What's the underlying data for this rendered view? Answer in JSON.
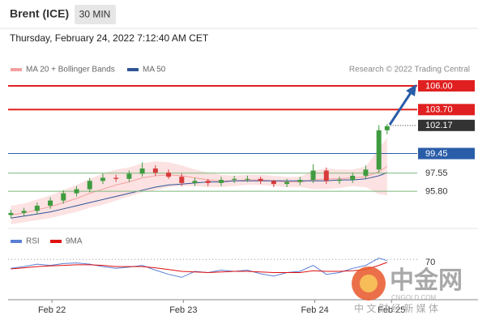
{
  "header": {
    "symbol": "Brent (ICE)",
    "interval": "30 MIN",
    "timestamp": "Thursday, February 24, 2022 7:12:40 AM CET"
  },
  "chart_data": {
    "type": "candlestick",
    "source": "Research © 2022 Trading Central",
    "up_color": "#3f9b3f",
    "down_color": "#d63a3a",
    "xlim": [
      0,
      74.7
    ],
    "ylim": [
      92.75,
      106.86
    ],
    "xticks": [
      {
        "value": 8,
        "label": "Feb 22"
      },
      {
        "value": 32,
        "label": "Feb 23"
      },
      {
        "value": 56,
        "label": "Feb 24"
      },
      {
        "value": 70,
        "label": "Feb 25"
      }
    ],
    "x": [
      0.5,
      2.9,
      5.3,
      7.7,
      10.1,
      12.5,
      14.9,
      17.3,
      19.7,
      22.1,
      24.5,
      26.9,
      29.3,
      31.7,
      34.1,
      36.5,
      38.9,
      41.3,
      43.7,
      46.1,
      48.5,
      50.9,
      53.3,
      55.7,
      58.1,
      60.5,
      62.9,
      65.3,
      67.7,
      69.2
    ],
    "open": [
      93.5,
      93.7,
      93.9,
      94.4,
      94.9,
      95.6,
      96.0,
      96.8,
      97.1,
      97.0,
      97.5,
      98.0,
      97.6,
      97.2,
      96.6,
      96.8,
      96.6,
      96.9,
      97.0,
      97.0,
      96.8,
      96.5,
      96.7,
      96.9,
      97.8,
      96.8,
      96.9,
      97.3,
      97.9,
      101.7
    ],
    "close": [
      93.7,
      93.9,
      94.4,
      94.9,
      95.6,
      96.0,
      96.8,
      97.1,
      97.0,
      97.5,
      98.0,
      97.6,
      97.2,
      96.6,
      96.8,
      96.6,
      96.9,
      97.0,
      97.0,
      96.8,
      96.5,
      96.7,
      96.9,
      97.8,
      96.8,
      96.9,
      97.3,
      97.9,
      101.7,
      102.1
    ],
    "high": [
      94.0,
      94.2,
      94.7,
      95.2,
      95.9,
      96.3,
      97.1,
      97.5,
      97.4,
      97.8,
      98.6,
      98.3,
      97.9,
      97.5,
      97.1,
      97.0,
      97.2,
      97.3,
      97.3,
      97.2,
      96.9,
      97.0,
      97.2,
      98.4,
      98.1,
      97.2,
      97.6,
      98.3,
      102.2,
      102.3
    ],
    "low": [
      93.2,
      93.4,
      93.6,
      94.1,
      94.6,
      95.3,
      95.7,
      96.5,
      96.7,
      96.7,
      97.2,
      97.3,
      97.0,
      96.3,
      96.3,
      96.3,
      96.3,
      96.6,
      96.7,
      96.5,
      96.2,
      96.2,
      96.4,
      96.6,
      96.5,
      96.5,
      96.6,
      97.0,
      97.6,
      101.3
    ],
    "series": [
      {
        "name": "MA 20 + Bollinger Bands",
        "color": "#f4a0a0",
        "values": [
          93.5,
          93.7,
          94.0,
          94.3,
          94.7,
          95.1,
          95.6,
          96.0,
          96.4,
          96.7,
          97.1,
          97.3,
          97.4,
          97.3,
          97.1,
          96.9,
          96.8,
          96.8,
          96.9,
          96.9,
          96.8,
          96.7,
          96.7,
          96.9,
          97.0,
          97.0,
          97.1,
          97.2,
          97.7,
          98.2
        ],
        "upper": [
          94.4,
          94.6,
          95.0,
          95.4,
          95.9,
          96.4,
          97.0,
          97.5,
          97.9,
          98.1,
          98.5,
          98.7,
          98.6,
          98.3,
          97.9,
          97.6,
          97.4,
          97.3,
          97.4,
          97.4,
          97.3,
          97.2,
          97.2,
          97.8,
          98.0,
          97.9,
          97.9,
          98.2,
          99.9,
          101.0
        ],
        "lower": [
          92.6,
          92.8,
          93.0,
          93.2,
          93.5,
          93.8,
          94.2,
          94.5,
          94.9,
          95.3,
          95.7,
          95.9,
          96.2,
          96.3,
          96.3,
          96.2,
          96.2,
          96.3,
          96.4,
          96.4,
          96.3,
          96.2,
          96.2,
          96.0,
          96.0,
          96.1,
          96.3,
          96.2,
          95.5,
          95.4
        ]
      },
      {
        "name": "MA 50",
        "color": "#2f5597",
        "values": [
          93.2,
          93.4,
          93.6,
          93.8,
          94.1,
          94.4,
          94.7,
          95.0,
          95.3,
          95.6,
          95.9,
          96.2,
          96.4,
          96.5,
          96.6,
          96.7,
          96.7,
          96.8,
          96.8,
          96.8,
          96.8,
          96.8,
          96.8,
          96.8,
          96.8,
          96.9,
          96.9,
          97.0,
          97.3,
          97.6
        ]
      }
    ],
    "levels": [
      {
        "value": 106,
        "label": "106.00",
        "color": "#e02020",
        "style": "solid",
        "boxed": true
      },
      {
        "value": 103.7,
        "label": "103.70",
        "color": "#e02020",
        "style": "solid",
        "boxed": true
      },
      {
        "value": 102.17,
        "label": "102.17",
        "color": "#333333",
        "style": "dotted",
        "boxed": true
      },
      {
        "value": 99.45,
        "label": "99.45",
        "color": "#2a5da8",
        "style": "solid",
        "boxed": true
      },
      {
        "value": 97.55,
        "label": "97.55",
        "color": "#7cb87c",
        "style": "solid",
        "boxed": false
      },
      {
        "value": 95.8,
        "label": "95.80",
        "color": "#7cb87c",
        "style": "solid",
        "boxed": false
      }
    ],
    "rsi": {
      "ylim": [
        0,
        100
      ],
      "yticks": [
        70
      ],
      "series": [
        {
          "name": "RSI",
          "color": "#5b7fd6",
          "values": [
            55,
            58,
            62,
            60,
            63,
            64,
            62,
            58,
            55,
            57,
            60,
            52,
            45,
            40,
            50,
            48,
            52,
            50,
            52,
            46,
            42,
            48,
            50,
            60,
            45,
            48,
            55,
            60,
            72,
            68
          ]
        },
        {
          "name": "9MA",
          "color": "#e01010",
          "values": [
            54,
            56,
            58,
            59,
            60,
            61,
            61,
            60,
            58,
            58,
            58,
            56,
            53,
            50,
            49,
            48,
            49,
            50,
            50,
            49,
            48,
            48,
            48,
            51,
            50,
            50,
            51,
            53,
            60,
            65
          ]
        }
      ]
    }
  },
  "watermark": {
    "brand": "中金网",
    "site": "CNGOLD.COM",
    "tagline": "中 文 财 经 新 媒 体"
  }
}
